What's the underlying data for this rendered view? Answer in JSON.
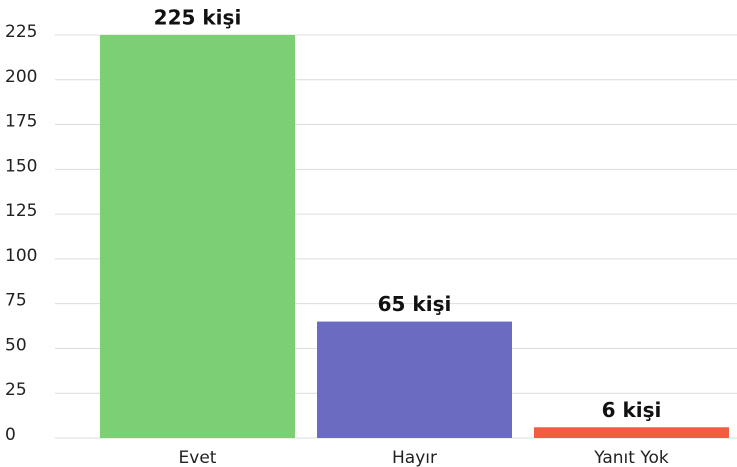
{
  "chart_data": {
    "type": "bar",
    "categories": [
      "Evet",
      "Hayır",
      "Yanıt Yok"
    ],
    "values": [
      225,
      65,
      6
    ],
    "value_labels": [
      "225 kişi",
      "65 kişi",
      "6 kişi"
    ],
    "colors": [
      "#7ccf72",
      "#6b6bc1",
      "#f05d43"
    ],
    "ylim": [
      0,
      225
    ],
    "yticks": [
      0,
      25,
      50,
      75,
      100,
      125,
      150,
      175,
      200,
      225
    ],
    "grid": true
  }
}
